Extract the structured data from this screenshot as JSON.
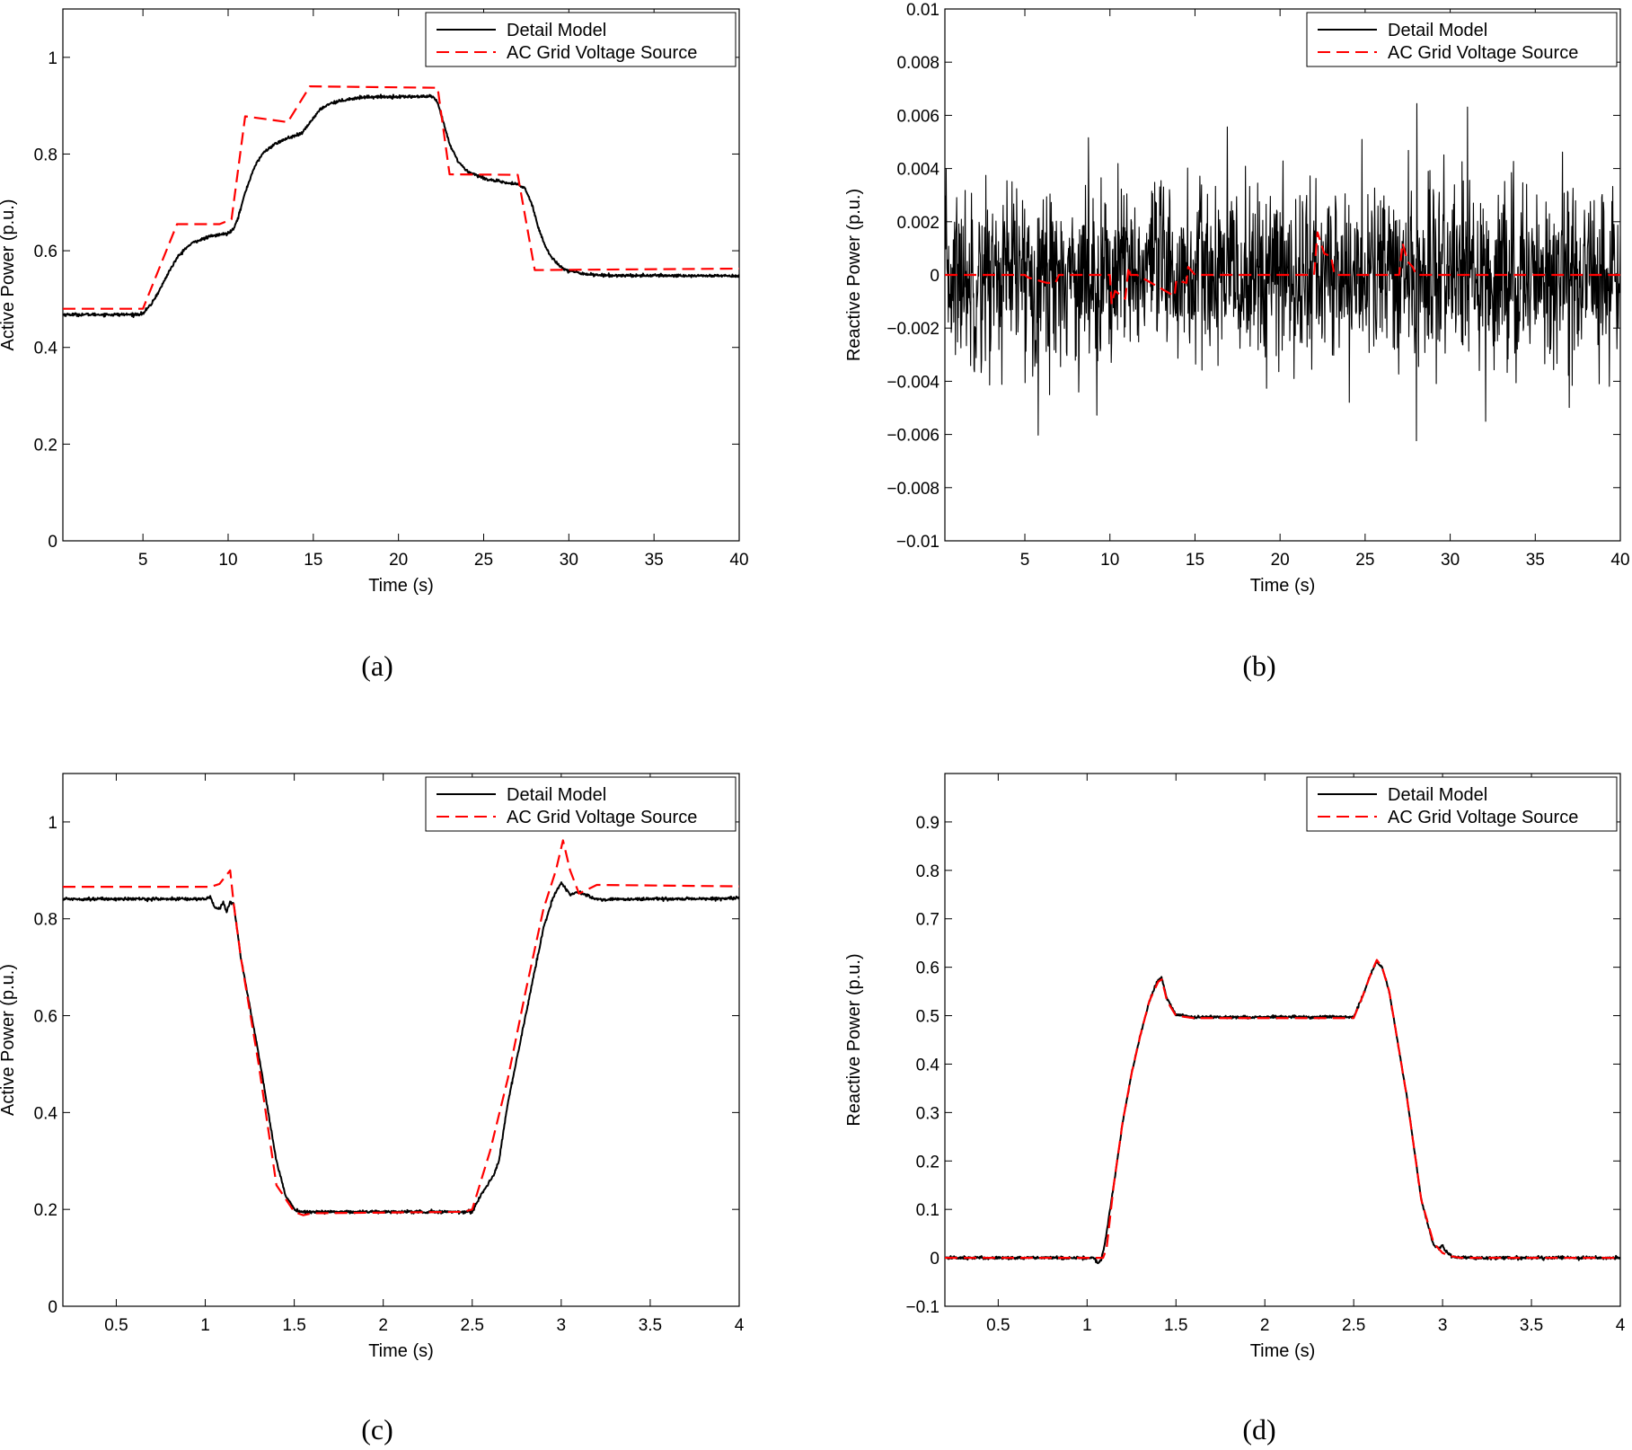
{
  "colors": {
    "detail": "#000000",
    "grid_source": "#ff0000"
  },
  "chart_data": [
    {
      "id": "a",
      "type": "line",
      "caption": "(a)",
      "xlabel": "Time (s)",
      "ylabel": "Active Power (p.u.)",
      "xlim": [
        0.3,
        40
      ],
      "ylim": [
        0,
        1.1
      ],
      "xticks": [
        5,
        10,
        15,
        20,
        25,
        30,
        35,
        40
      ],
      "yticks": [
        0,
        0.2,
        0.4,
        0.6,
        0.8,
        1
      ],
      "xtick_labels": [
        "5",
        "10",
        "15",
        "20",
        "25",
        "30",
        "35",
        "40"
      ],
      "ytick_labels": [
        "0",
        "0.2",
        "0.4",
        "0.6",
        "0.8",
        "1"
      ],
      "legend_position": "top-right",
      "series": [
        {
          "name": "Detail Model",
          "style": "solid",
          "color": "#000000",
          "noise": 0.0015,
          "x": [
            0.3,
            4.5,
            5.0,
            5.5,
            6.0,
            6.5,
            7.0,
            7.5,
            8.0,
            9.0,
            10.0,
            10.3,
            10.6,
            11.0,
            11.5,
            12.0,
            12.5,
            13.0,
            13.5,
            14.0,
            14.3,
            14.6,
            15.0,
            15.5,
            16.0,
            17.0,
            18.0,
            22.0,
            22.3,
            22.6,
            23.0,
            23.5,
            24.0,
            25.0,
            26.0,
            27.0,
            27.4,
            27.8,
            28.2,
            28.6,
            29.0,
            29.5,
            30.0,
            31.0,
            32.0,
            40.0
          ],
          "y": [
            0.468,
            0.468,
            0.47,
            0.49,
            0.52,
            0.555,
            0.585,
            0.605,
            0.618,
            0.63,
            0.636,
            0.645,
            0.67,
            0.72,
            0.77,
            0.8,
            0.815,
            0.825,
            0.833,
            0.838,
            0.842,
            0.855,
            0.875,
            0.895,
            0.905,
            0.913,
            0.918,
            0.919,
            0.905,
            0.87,
            0.82,
            0.785,
            0.765,
            0.75,
            0.742,
            0.737,
            0.73,
            0.7,
            0.65,
            0.61,
            0.585,
            0.568,
            0.558,
            0.552,
            0.549,
            0.548
          ]
        },
        {
          "name": "AC Grid Voltage Source",
          "style": "dashed",
          "color": "#ff0000",
          "noise": 0,
          "x": [
            0.3,
            5.0,
            7.0,
            9.5,
            10.2,
            11.0,
            13.5,
            14.8,
            22.3,
            23.0,
            27.0,
            28.0,
            40.0
          ],
          "y": [
            0.48,
            0.48,
            0.655,
            0.655,
            0.665,
            0.878,
            0.866,
            0.94,
            0.937,
            0.758,
            0.757,
            0.56,
            0.563
          ]
        }
      ]
    },
    {
      "id": "b",
      "type": "line",
      "caption": "(b)",
      "xlabel": "Time (s)",
      "ylabel": "Reactive Power (p.u.)",
      "xlim": [
        0.3,
        40
      ],
      "ylim": [
        -0.01,
        0.01
      ],
      "xticks": [
        5,
        10,
        15,
        20,
        25,
        30,
        35,
        40
      ],
      "yticks": [
        -0.01,
        -0.008,
        -0.006,
        -0.004,
        -0.002,
        0,
        0.002,
        0.004,
        0.006,
        0.008,
        0.01
      ],
      "xtick_labels": [
        "5",
        "10",
        "15",
        "20",
        "25",
        "30",
        "35",
        "40"
      ],
      "ytick_labels": [
        "−0.01",
        "−0.008",
        "−0.006",
        "−0.004",
        "−0.002",
        "0",
        "0.002",
        "0.004",
        "0.006",
        "0.008",
        "0.01"
      ],
      "legend_position": "top-right",
      "series": [
        {
          "name": "Detail Model",
          "style": "solid",
          "color": "#000000",
          "noise": 0.0017,
          "noise_points": 1600,
          "x": [
            0.3,
            40.0
          ],
          "y": [
            0.0,
            0.0
          ]
        },
        {
          "name": "AC Grid Voltage Source",
          "style": "dashed",
          "color": "#ff0000",
          "noise": 0,
          "x": [
            0.3,
            5.0,
            5.2,
            6.3,
            6.8,
            7.0,
            7.1,
            10.0,
            10.1,
            10.3,
            10.9,
            11.1,
            11.2,
            11.6,
            13.8,
            13.9,
            14.5,
            14.6,
            15.0,
            22.0,
            22.2,
            22.6,
            23.0,
            23.2,
            23.4,
            27.0,
            27.2,
            27.5,
            27.8,
            28.0,
            28.2,
            40.0
          ],
          "y": [
            0.0,
            0.0,
            -0.0001,
            -0.0003,
            -0.0003,
            0.0,
            0.0,
            0.0,
            -0.0011,
            -0.0006,
            -0.0009,
            0.0003,
            0.0,
            0.0,
            -0.0008,
            -0.0002,
            -0.0003,
            0.0003,
            0.0,
            0.0,
            0.0016,
            0.0008,
            0.0007,
            0.0,
            0.0,
            0.0,
            0.0012,
            0.0005,
            0.0003,
            0.0,
            0.0,
            0.0
          ]
        }
      ]
    },
    {
      "id": "c",
      "type": "line",
      "caption": "(c)",
      "xlabel": "Time (s)",
      "ylabel": "Active Power (p.u.)",
      "xlim": [
        0.2,
        4
      ],
      "ylim": [
        0,
        1.1
      ],
      "xticks": [
        0.5,
        1,
        1.5,
        2,
        2.5,
        3,
        3.5,
        4
      ],
      "yticks": [
        0,
        0.2,
        0.4,
        0.6,
        0.8,
        1
      ],
      "xtick_labels": [
        "0.5",
        "1",
        "1.5",
        "2",
        "2.5",
        "3",
        "3.5",
        "4"
      ],
      "ytick_labels": [
        "0",
        "0.2",
        "0.4",
        "0.6",
        "0.8",
        "1"
      ],
      "legend_position": "top-right",
      "series": [
        {
          "name": "Detail Model",
          "style": "solid",
          "color": "#000000",
          "noise": 0.0015,
          "x": [
            0.2,
            1.0,
            1.03,
            1.05,
            1.08,
            1.1,
            1.12,
            1.14,
            1.16,
            1.2,
            1.3,
            1.4,
            1.45,
            1.5,
            1.52,
            1.6,
            2.5,
            2.55,
            2.6,
            2.62,
            2.65,
            2.7,
            2.8,
            2.9,
            2.95,
            3.0,
            3.05,
            3.1,
            3.2,
            4.0
          ],
          "y": [
            0.841,
            0.841,
            0.845,
            0.825,
            0.82,
            0.835,
            0.815,
            0.835,
            0.83,
            0.72,
            0.52,
            0.3,
            0.23,
            0.2,
            0.195,
            0.195,
            0.195,
            0.23,
            0.26,
            0.27,
            0.3,
            0.42,
            0.6,
            0.78,
            0.84,
            0.875,
            0.85,
            0.855,
            0.84,
            0.842
          ]
        },
        {
          "name": "AC Grid Voltage Source",
          "style": "dashed",
          "color": "#ff0000",
          "noise": 0,
          "x": [
            0.2,
            1.03,
            1.08,
            1.14,
            1.16,
            1.2,
            1.3,
            1.4,
            1.5,
            1.55,
            1.6,
            2.45,
            2.5,
            2.6,
            2.7,
            2.8,
            2.9,
            2.97,
            3.01,
            3.05,
            3.1,
            3.2,
            4.0
          ],
          "y": [
            0.866,
            0.866,
            0.872,
            0.9,
            0.83,
            0.72,
            0.5,
            0.25,
            0.195,
            0.188,
            0.192,
            0.195,
            0.2,
            0.32,
            0.47,
            0.65,
            0.82,
            0.9,
            0.962,
            0.9,
            0.852,
            0.87,
            0.867
          ]
        }
      ]
    },
    {
      "id": "d",
      "type": "line",
      "caption": "(d)",
      "xlabel": "Time (s)",
      "ylabel": "Reactive Power (p.u.)",
      "xlim": [
        0.2,
        4
      ],
      "ylim": [
        -0.1,
        1
      ],
      "xticks": [
        0.5,
        1,
        1.5,
        2,
        2.5,
        3,
        3.5,
        4
      ],
      "yticks": [
        -0.1,
        0,
        0.1,
        0.2,
        0.3,
        0.4,
        0.5,
        0.6,
        0.7,
        0.8,
        0.9
      ],
      "xtick_labels": [
        "0.5",
        "1",
        "1.5",
        "2",
        "2.5",
        "3",
        "3.5",
        "4"
      ],
      "ytick_labels": [
        "−0.1",
        "0",
        "0.1",
        "0.2",
        "0.3",
        "0.4",
        "0.5",
        "0.6",
        "0.7",
        "0.8",
        "0.9"
      ],
      "legend_position": "top-right",
      "series": [
        {
          "name": "Detail Model",
          "style": "solid",
          "color": "#000000",
          "noise": 0.0015,
          "x": [
            0.2,
            1.04,
            1.06,
            1.08,
            1.1,
            1.15,
            1.2,
            1.25,
            1.3,
            1.35,
            1.4,
            1.42,
            1.45,
            1.5,
            1.6,
            2.5,
            2.55,
            2.6,
            2.63,
            2.66,
            2.7,
            2.8,
            2.88,
            2.95,
            2.98,
            3.0,
            3.02,
            3.05,
            3.1,
            4.0
          ],
          "y": [
            0.0,
            0.0,
            -0.012,
            -0.005,
            0.03,
            0.15,
            0.28,
            0.38,
            0.46,
            0.53,
            0.575,
            0.578,
            0.535,
            0.502,
            0.497,
            0.497,
            0.54,
            0.59,
            0.612,
            0.6,
            0.55,
            0.33,
            0.12,
            0.025,
            0.02,
            0.025,
            0.012,
            0.003,
            0.0,
            0.0
          ]
        },
        {
          "name": "AC Grid Voltage Source",
          "style": "dashed",
          "color": "#ff0000",
          "noise": 0,
          "x": [
            0.2,
            1.09,
            1.11,
            1.15,
            1.2,
            1.25,
            1.3,
            1.35,
            1.4,
            1.42,
            1.45,
            1.5,
            1.6,
            2.5,
            2.55,
            2.6,
            2.63,
            2.66,
            2.7,
            2.8,
            2.88,
            2.95,
            3.0,
            3.05,
            3.1,
            4.0
          ],
          "y": [
            0.0,
            0.0,
            0.02,
            0.15,
            0.28,
            0.38,
            0.46,
            0.53,
            0.57,
            0.575,
            0.53,
            0.5,
            0.495,
            0.495,
            0.54,
            0.59,
            0.615,
            0.6,
            0.55,
            0.33,
            0.12,
            0.03,
            0.01,
            0.003,
            0.0,
            0.0
          ]
        }
      ]
    }
  ]
}
